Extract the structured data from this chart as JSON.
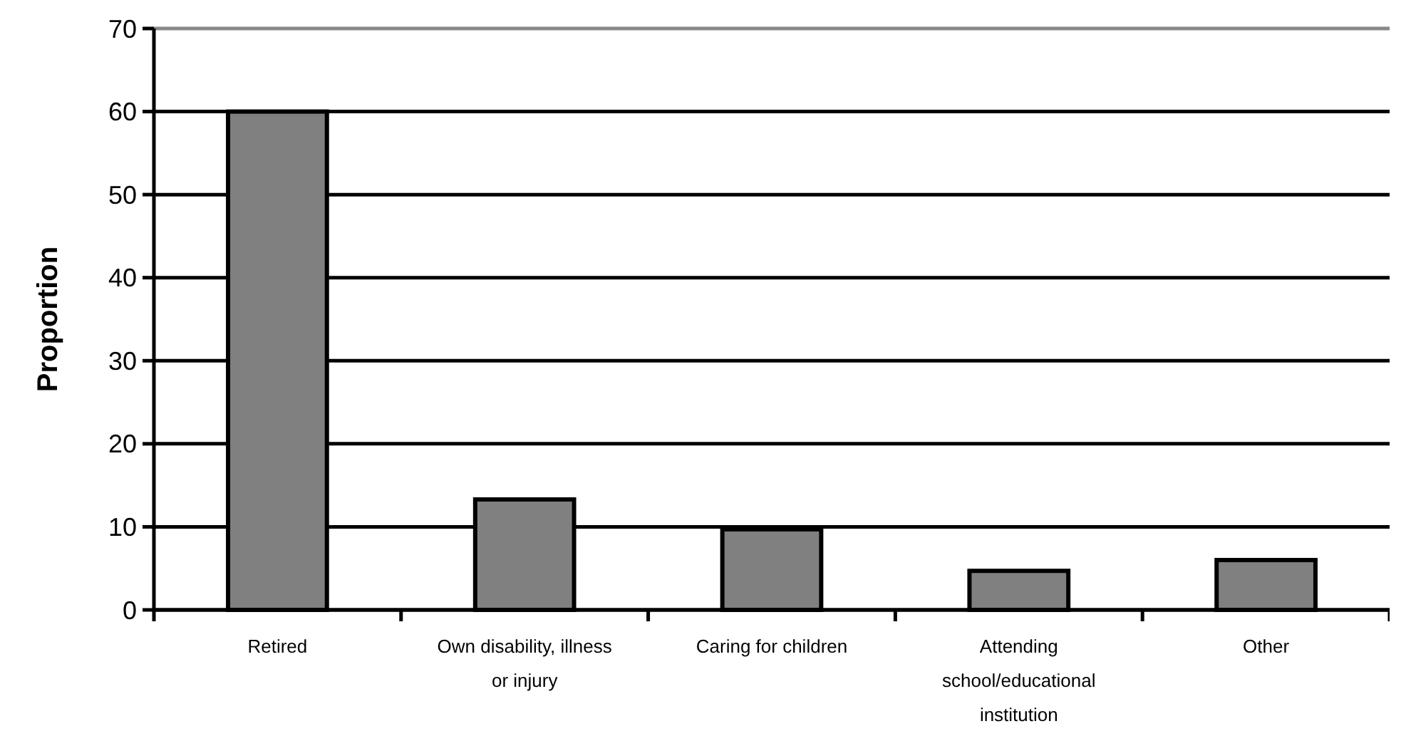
{
  "chart_data": {
    "type": "bar",
    "ylabel": "Proportion",
    "categories": [
      "Retired",
      "Own disability, illness or injury",
      "Caring for children",
      "Attending school/educational institution",
      "Other"
    ],
    "values": [
      60,
      13.3,
      9.7,
      4.7,
      6.0
    ],
    "color": "#808080",
    "ylim": [
      0,
      70
    ],
    "yticks": [
      0,
      10,
      20,
      30,
      40,
      50,
      60,
      70
    ],
    "grid": "y"
  }
}
